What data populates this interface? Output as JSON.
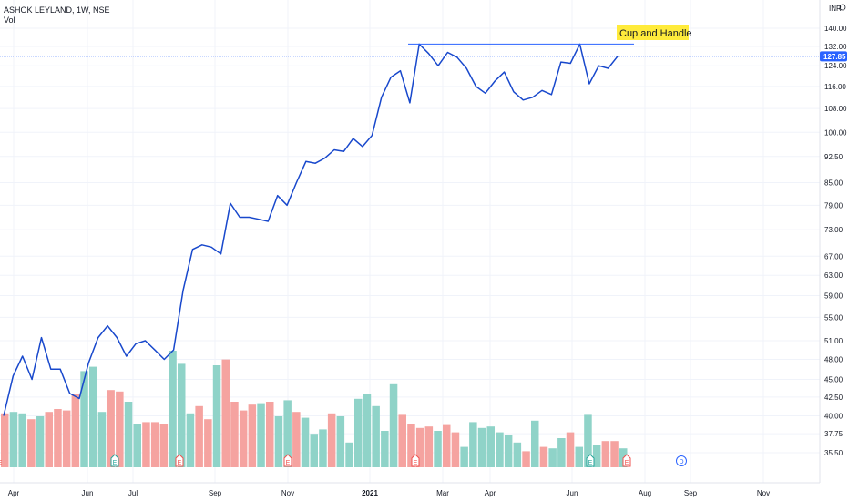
{
  "chart_data": {
    "type": "line",
    "title": "ASHOK LEYLAND, 1W, NSE",
    "volume_label": "Vol",
    "currency": "INR",
    "menu_icon": "currency-menu-icon",
    "price_scale": "log",
    "y_ticks": [
      "140.00",
      "132.00",
      "124.00",
      "116.00",
      "108.00",
      "100.00",
      "92.50",
      "85.00",
      "79.00",
      "73.00",
      "67.00",
      "63.00",
      "59.00",
      "55.00",
      "51.00",
      "48.00",
      "45.00",
      "42.50",
      "40.00",
      "37.75",
      "35.50"
    ],
    "x_ticks": [
      "Apr",
      "Jun",
      "Jul",
      "Sep",
      "Nov",
      "2021",
      "Mar",
      "Apr",
      "Jun",
      "Aug",
      "Sep",
      "Nov"
    ],
    "last_price": "127.85",
    "series": [
      {
        "name": "Price",
        "color": "#1848cc",
        "values": [
          40.0,
          45.5,
          48.5,
          45.0,
          51.5,
          46.5,
          46.5,
          43.0,
          42.3,
          47.5,
          51.5,
          53.5,
          51.5,
          48.5,
          50.5,
          51.0,
          49.5,
          48.0,
          49.5,
          60.0,
          68.5,
          69.5,
          69.0,
          67.5,
          79.5,
          76.0,
          76.0,
          75.5,
          75.0,
          81.5,
          79.0,
          85.0,
          91.0,
          90.5,
          92.0,
          94.5,
          94.0,
          98.0,
          95.5,
          99.0,
          112.0,
          119.5,
          122.0,
          110.0,
          133.0,
          129.0,
          124.0,
          129.5,
          127.5,
          123.0,
          116.0,
          113.5,
          118.0,
          121.5,
          114.0,
          111.0,
          112.0,
          114.5,
          113.0,
          125.5,
          125.0,
          133.0,
          117.0,
          124.0,
          123.0,
          127.85
        ]
      }
    ],
    "volume": {
      "up_color": "#8fd3c8",
      "down_color": "#f5a3a0",
      "bars": [
        {
          "v": 37,
          "up": false
        },
        {
          "v": 38,
          "up": true
        },
        {
          "v": 37,
          "up": true
        },
        {
          "v": 33,
          "up": false
        },
        {
          "v": 35,
          "up": true
        },
        {
          "v": 38,
          "up": false
        },
        {
          "v": 40,
          "up": false
        },
        {
          "v": 39,
          "up": false
        },
        {
          "v": 50,
          "up": false
        },
        {
          "v": 66,
          "up": true
        },
        {
          "v": 69,
          "up": true
        },
        {
          "v": 38,
          "up": true
        },
        {
          "v": 53,
          "up": false
        },
        {
          "v": 52,
          "up": false
        },
        {
          "v": 45,
          "up": true
        },
        {
          "v": 30,
          "up": true
        },
        {
          "v": 31,
          "up": false
        },
        {
          "v": 31,
          "up": false
        },
        {
          "v": 30,
          "up": false
        },
        {
          "v": 80,
          "up": true
        },
        {
          "v": 71,
          "up": true
        },
        {
          "v": 37,
          "up": true
        },
        {
          "v": 42,
          "up": false
        },
        {
          "v": 33,
          "up": false
        },
        {
          "v": 70,
          "up": true
        },
        {
          "v": 74,
          "up": false
        },
        {
          "v": 45,
          "up": false
        },
        {
          "v": 39,
          "up": false
        },
        {
          "v": 43,
          "up": false
        },
        {
          "v": 44,
          "up": true
        },
        {
          "v": 45,
          "up": false
        },
        {
          "v": 35,
          "up": true
        },
        {
          "v": 46,
          "up": true
        },
        {
          "v": 38,
          "up": false
        },
        {
          "v": 34,
          "up": true
        },
        {
          "v": 23,
          "up": true
        },
        {
          "v": 26,
          "up": true
        },
        {
          "v": 37,
          "up": false
        },
        {
          "v": 35,
          "up": true
        },
        {
          "v": 17,
          "up": true
        },
        {
          "v": 47,
          "up": true
        },
        {
          "v": 50,
          "up": true
        },
        {
          "v": 42,
          "up": true
        },
        {
          "v": 25,
          "up": true
        },
        {
          "v": 57,
          "up": true
        },
        {
          "v": 36,
          "up": false
        },
        {
          "v": 30,
          "up": false
        },
        {
          "v": 27,
          "up": false
        },
        {
          "v": 28,
          "up": false
        },
        {
          "v": 25,
          "up": true
        },
        {
          "v": 29,
          "up": false
        },
        {
          "v": 24,
          "up": false
        },
        {
          "v": 14,
          "up": true
        },
        {
          "v": 31,
          "up": true
        },
        {
          "v": 27,
          "up": true
        },
        {
          "v": 28,
          "up": true
        },
        {
          "v": 24,
          "up": true
        },
        {
          "v": 22,
          "up": true
        },
        {
          "v": 17,
          "up": true
        },
        {
          "v": 11,
          "up": false
        },
        {
          "v": 32,
          "up": true
        },
        {
          "v": 14,
          "up": false
        },
        {
          "v": 13,
          "up": true
        },
        {
          "v": 20,
          "up": true
        },
        {
          "v": 24,
          "up": false
        },
        {
          "v": 14,
          "up": true
        },
        {
          "v": 36,
          "up": true
        },
        {
          "v": 15,
          "up": true
        },
        {
          "v": 18,
          "up": false
        },
        {
          "v": 18,
          "up": false
        },
        {
          "v": 13,
          "up": true
        }
      ]
    },
    "events": [
      {
        "label": "E",
        "kind": "earnings",
        "color": "#26a69a"
      },
      {
        "label": "E",
        "kind": "earnings",
        "color": "#ef5350"
      },
      {
        "label": "E",
        "kind": "earnings",
        "color": "#ef5350"
      },
      {
        "label": "E",
        "kind": "earnings",
        "color": "#ef5350"
      },
      {
        "label": "E",
        "kind": "earnings",
        "color": "#26a69a"
      },
      {
        "label": "E",
        "kind": "earnings",
        "color": "#ef5350"
      },
      {
        "label": "E",
        "kind": "earnings-upcoming",
        "color": "#ef5350"
      },
      {
        "label": "D",
        "kind": "dividend",
        "color": "#2962ff"
      }
    ],
    "annotation": {
      "text": "Cup and Handle",
      "resistance_level": 133.0
    },
    "grid": true,
    "price_line_color": "#2962ff"
  }
}
